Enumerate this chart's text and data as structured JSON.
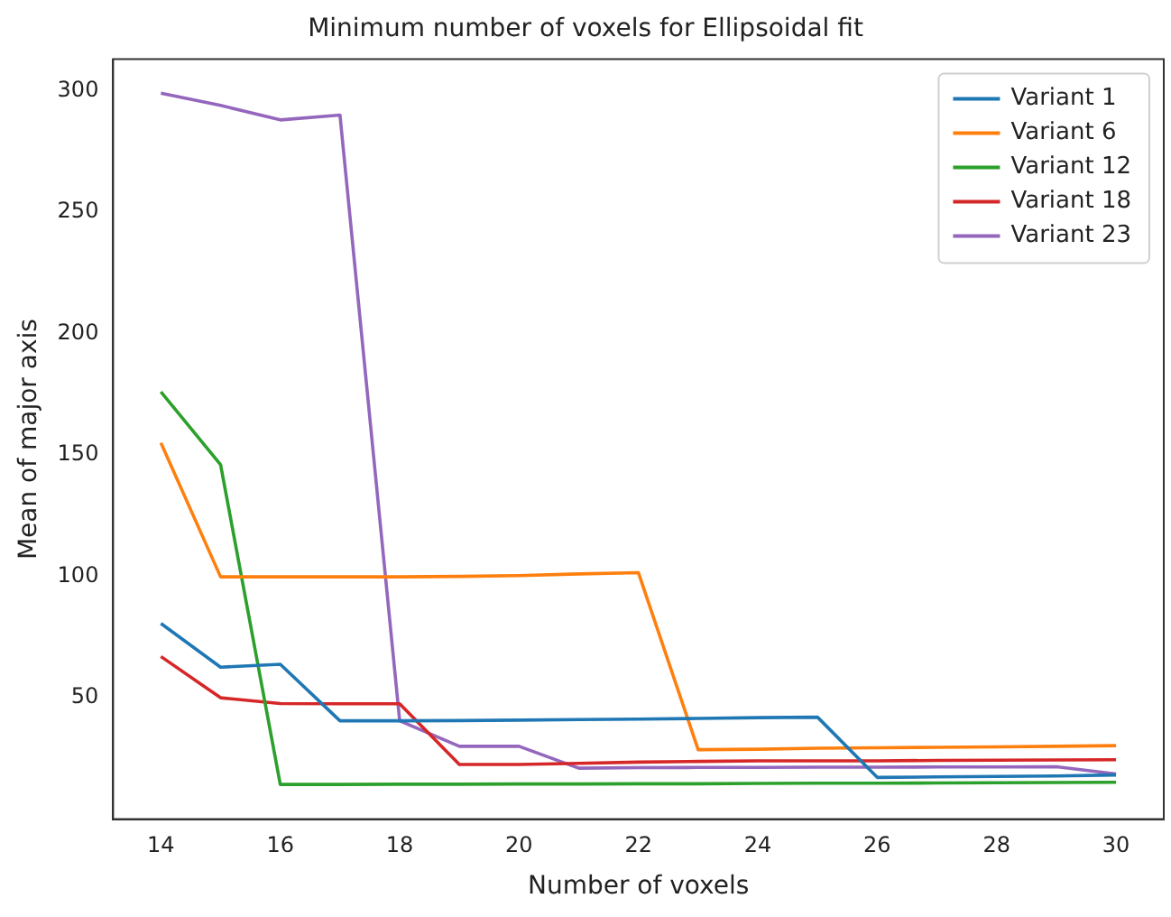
{
  "chart_data": {
    "type": "line",
    "title": "Minimum number of voxels for Ellipsoidal fit",
    "xlabel": "Number of voxels",
    "ylabel": "Mean of major axis",
    "x": [
      14,
      15,
      16,
      17,
      18,
      19,
      20,
      21,
      22,
      23,
      24,
      25,
      26,
      27,
      28,
      29,
      30
    ],
    "series": [
      {
        "name": "Variant 1",
        "color": "#1f77b4",
        "values": [
          80.6,
          62.6,
          63.8,
          40.5,
          40.5,
          40.6,
          40.8,
          41,
          41.2,
          41.5,
          41.8,
          42,
          17.2,
          17.4,
          17.6,
          17.8,
          18.2
        ]
      },
      {
        "name": "Variant 6",
        "color": "#ff7f0e",
        "values": [
          155,
          99.8,
          99.8,
          99.8,
          99.8,
          100,
          100.3,
          101,
          101.5,
          28.6,
          28.8,
          29.2,
          29.4,
          29.6,
          29.8,
          30,
          30.3
        ]
      },
      {
        "name": "Variant 12",
        "color": "#2ca02c",
        "values": [
          176,
          146,
          14.3,
          14.3,
          14.4,
          14.4,
          14.5,
          14.5,
          14.6,
          14.6,
          14.7,
          14.8,
          14.8,
          14.9,
          15,
          15.1,
          15.2
        ]
      },
      {
        "name": "Variant 18",
        "color": "#d62728",
        "values": [
          67,
          50,
          47.6,
          47.5,
          47.5,
          22.5,
          22.5,
          23,
          23.5,
          23.8,
          24,
          24,
          24,
          24.2,
          24.3,
          24.4,
          24.5
        ]
      },
      {
        "name": "Variant 23",
        "color": "#9467bd",
        "values": [
          299,
          294,
          288,
          290,
          40.5,
          30,
          30,
          21,
          21.2,
          21.3,
          21.3,
          21.4,
          21.4,
          21.5,
          21.5,
          21.6,
          18.6
        ]
      }
    ],
    "xlim": [
      13.2,
      30.8
    ],
    "ylim": [
      0,
      313
    ],
    "xticks": [
      14,
      16,
      18,
      20,
      22,
      24,
      26,
      28,
      30
    ],
    "yticks": [
      50,
      100,
      150,
      200,
      250,
      300
    ],
    "grid": false,
    "legend": "top right",
    "marker": "none",
    "line_style": "solid"
  }
}
